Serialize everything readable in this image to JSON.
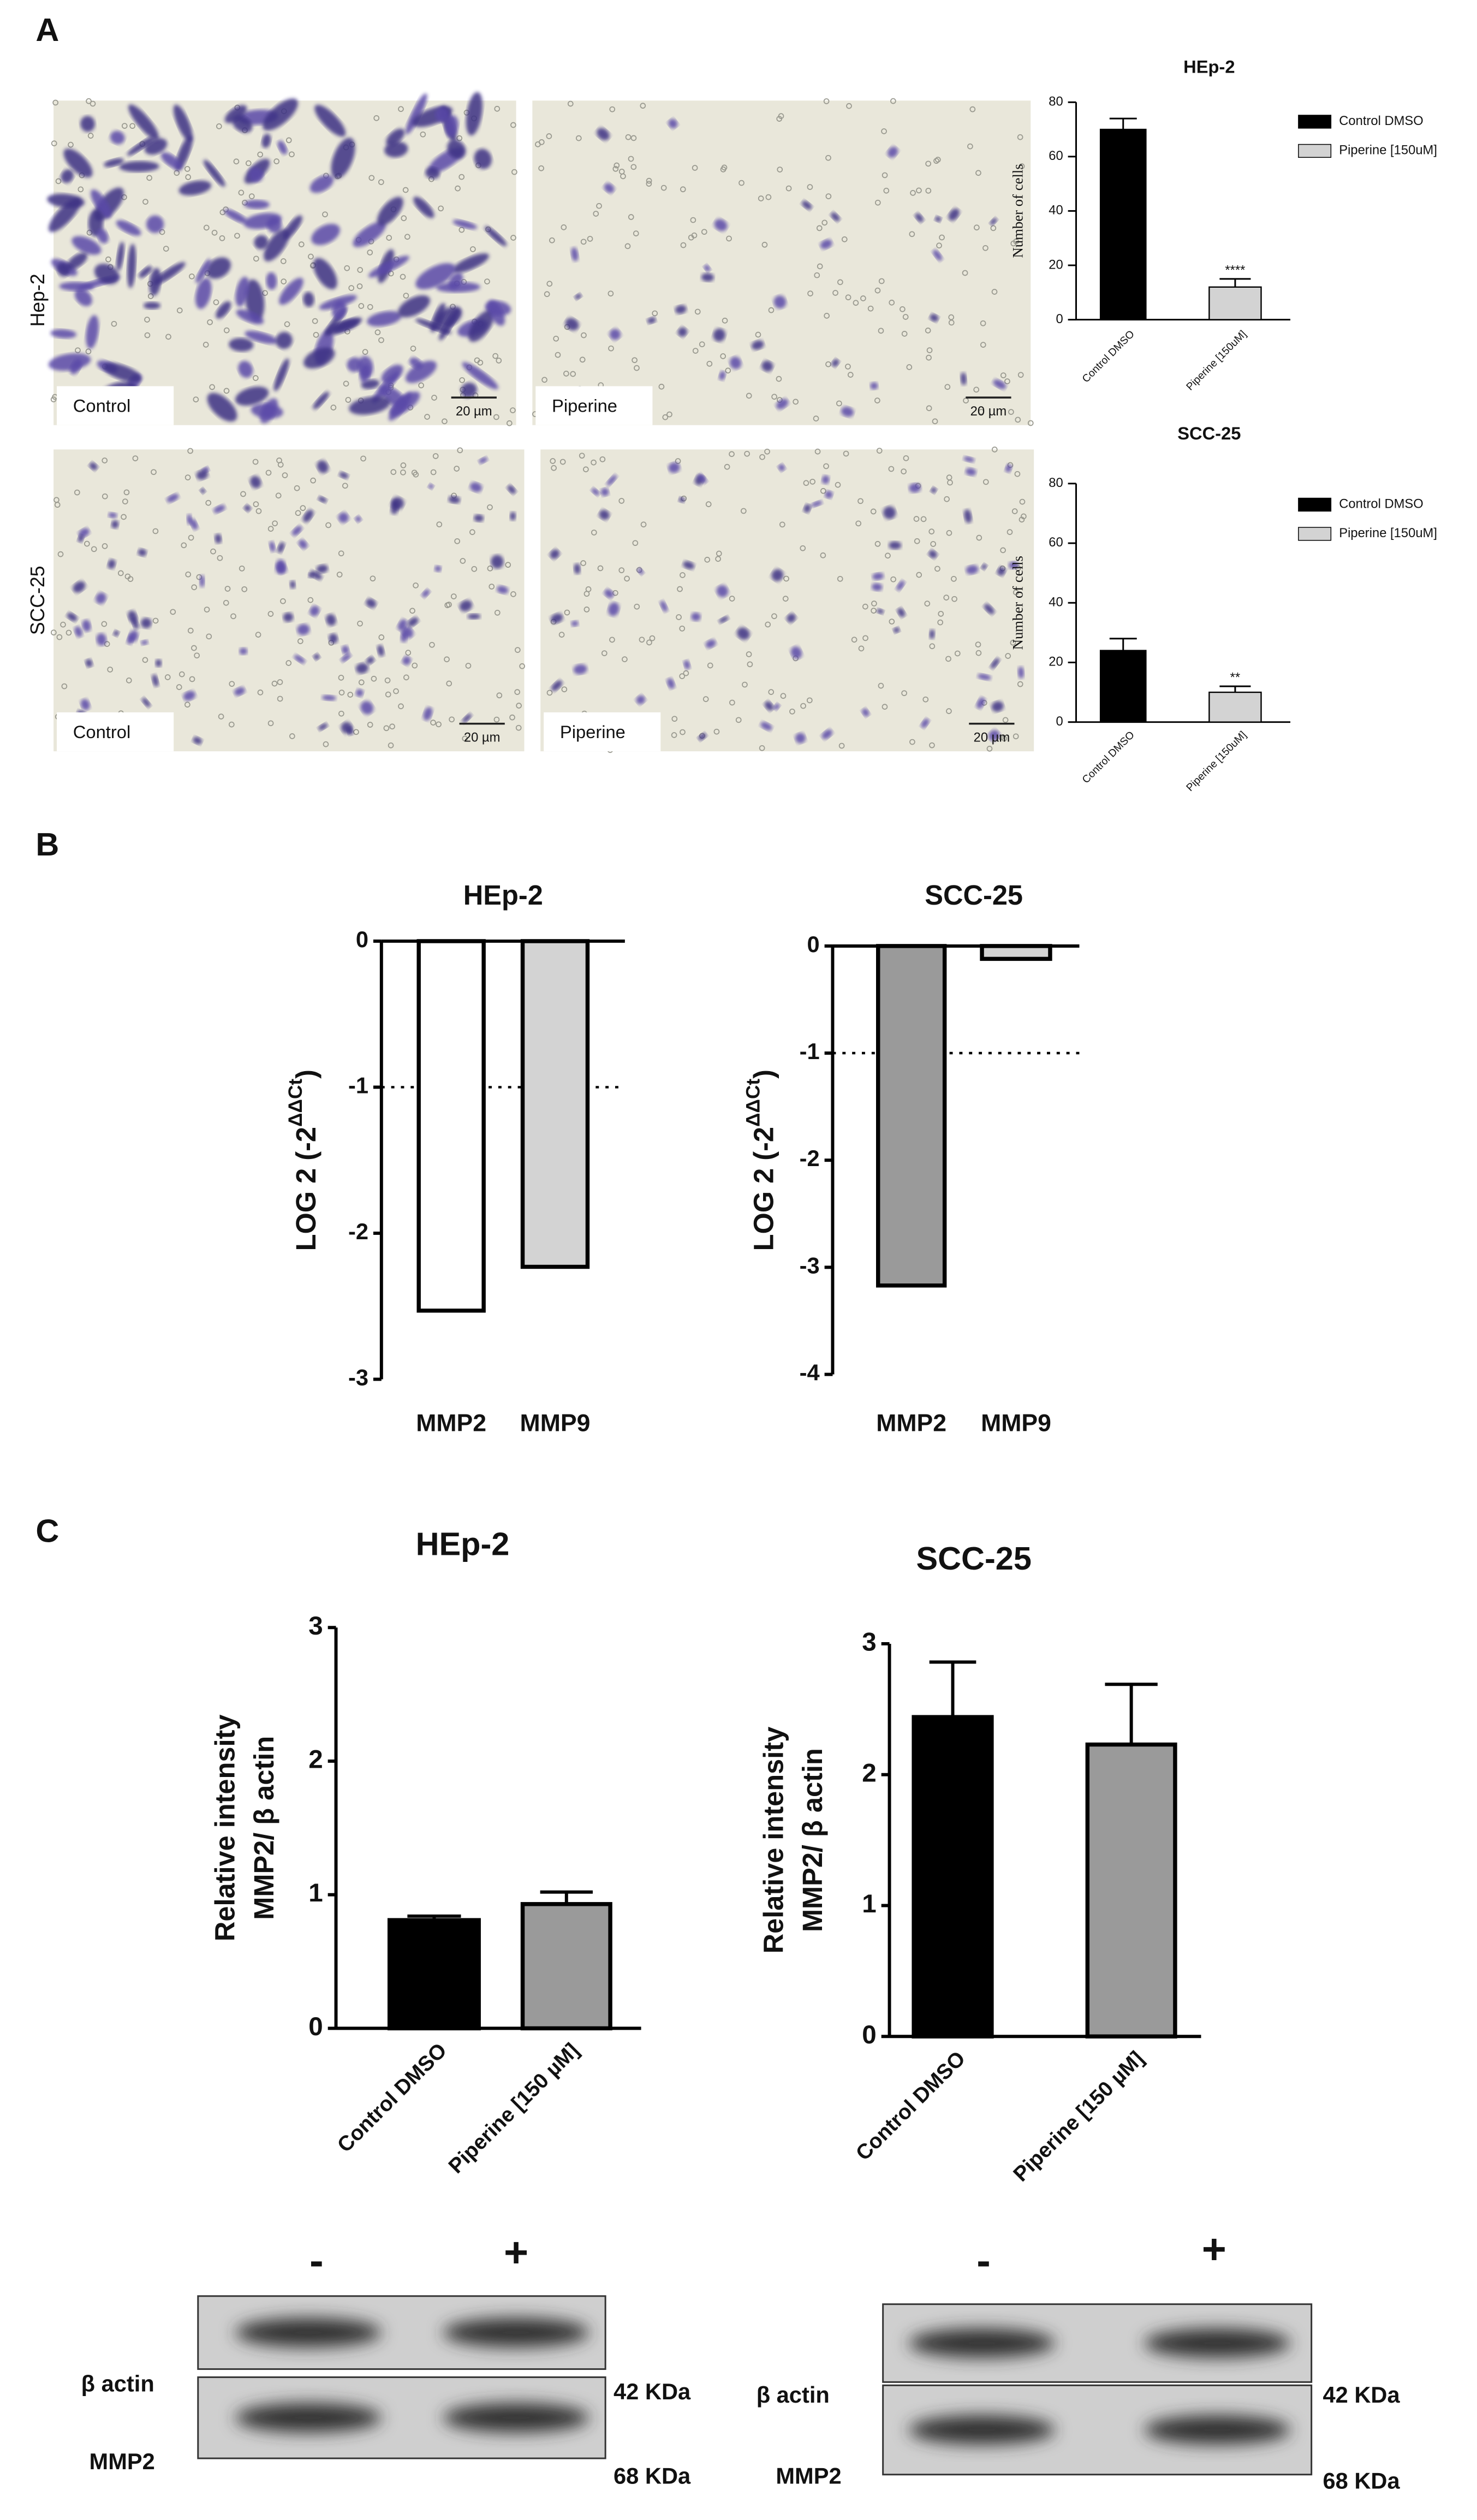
{
  "panel_labels": [
    "A",
    "B",
    "C"
  ],
  "micrographs": {
    "rows": [
      "Hep-2",
      "SCC-25"
    ],
    "labels": [
      [
        "Control",
        "Piperine"
      ],
      [
        "Control",
        "Piperine"
      ]
    ],
    "scale_bar": "20 µm"
  },
  "blots": [
    {
      "lanes": [
        "-",
        "+"
      ],
      "bands": [
        {
          "name": "β actin",
          "size": "42 KDa"
        },
        {
          "name": "MMP2",
          "size": "68 KDa"
        }
      ]
    },
    {
      "lanes": [
        "-",
        "+"
      ],
      "bands": [
        {
          "name": "β actin",
          "size": "42 KDa"
        },
        {
          "name": "MMP2",
          "size": "68 KDa"
        }
      ]
    }
  ],
  "chart_data": [
    {
      "type": "bar",
      "title": "HEp-2",
      "ylabel": "Number of cells",
      "categories": [
        "Control DMSO",
        "Piperine [150uM]"
      ],
      "values": [
        70,
        12
      ],
      "errors": [
        4,
        3
      ],
      "colors": [
        "#000000",
        "#d3d3d3"
      ],
      "ylim": [
        0,
        80
      ],
      "yticks": [
        0,
        20,
        40,
        60,
        80
      ],
      "legend": true,
      "annotations": [
        {
          "text": "****",
          "x": "Piperine [150uM]"
        }
      ]
    },
    {
      "type": "bar",
      "title": "SCC-25",
      "ylabel": "Number of cells",
      "categories": [
        "Control DMSO",
        "Piperine [150uM]"
      ],
      "values": [
        24,
        10
      ],
      "errors": [
        4,
        2
      ],
      "colors": [
        "#000000",
        "#d3d3d3"
      ],
      "ylim": [
        0,
        80
      ],
      "yticks": [
        0,
        20,
        40,
        60,
        80
      ],
      "legend": true,
      "annotations": [
        {
          "text": "**",
          "x": "Piperine [150uM]"
        }
      ]
    },
    {
      "type": "bar",
      "title": "HEp-2",
      "ylabel": "LOG 2 (-2",
      "ylabel_superscript": "ΔΔCt",
      "ylabel_suffix": ")",
      "categories": [
        "MMP2",
        "MMP9"
      ],
      "values": [
        -2.53,
        -2.23
      ],
      "colors": [
        "#ffffff",
        "#d3d3d3"
      ],
      "ylim": [
        -3,
        0
      ],
      "yticks": [
        -3,
        -2,
        -1,
        0
      ],
      "hline": -1
    },
    {
      "type": "bar",
      "title": "SCC-25",
      "ylabel": "LOG 2 (-2",
      "ylabel_superscript": "ΔΔCt",
      "ylabel_suffix": ")",
      "categories": [
        "MMP2",
        "MMP9"
      ],
      "values": [
        -3.17,
        -0.12
      ],
      "colors": [
        "#9a9a9a",
        "#d3d3d3"
      ],
      "ylim": [
        -4,
        0
      ],
      "yticks": [
        -4,
        -3,
        -2,
        -1,
        0
      ],
      "hline": -1
    },
    {
      "type": "bar",
      "title": "HEp-2",
      "ylabel": [
        "Relative intensity",
        "MMP2/ β actin"
      ],
      "categories": [
        "Control DMSO",
        "Piperine [150 µM]"
      ],
      "values": [
        0.81,
        0.93
      ],
      "errors": [
        0.03,
        0.09
      ],
      "colors": [
        "#000000",
        "#9a9a9a"
      ],
      "ylim": [
        0,
        3
      ],
      "yticks": [
        0,
        1,
        2,
        3
      ]
    },
    {
      "type": "bar",
      "title": "SCC-25",
      "ylabel": [
        "Relative intensity",
        "MMP2/ β actin"
      ],
      "categories": [
        "Control DMSO",
        "Piperine [150 µM]"
      ],
      "values": [
        2.44,
        2.23
      ],
      "errors": [
        0.42,
        0.46
      ],
      "colors": [
        "#000000",
        "#9a9a9a"
      ],
      "ylim": [
        0,
        3
      ],
      "yticks": [
        0,
        1,
        2,
        3
      ]
    }
  ]
}
